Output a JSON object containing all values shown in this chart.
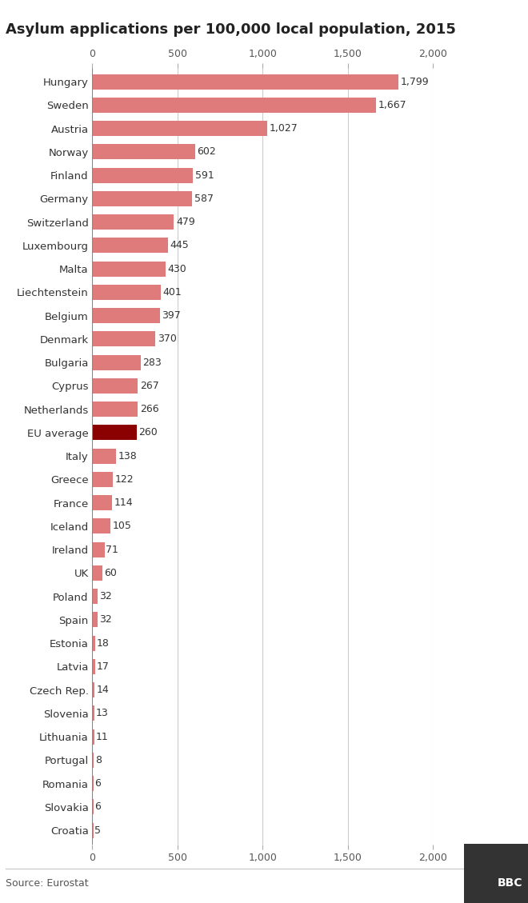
{
  "title": "Asylum applications per 100,000 local population, 2015",
  "source": "Source: Eurostat",
  "categories": [
    "Hungary",
    "Sweden",
    "Austria",
    "Norway",
    "Finland",
    "Germany",
    "Switzerland",
    "Luxembourg",
    "Malta",
    "Liechtenstein",
    "Belgium",
    "Denmark",
    "Bulgaria",
    "Cyprus",
    "Netherlands",
    "EU average",
    "Italy",
    "Greece",
    "France",
    "Iceland",
    "Ireland",
    "UK",
    "Poland",
    "Spain",
    "Estonia",
    "Latvia",
    "Czech Rep.",
    "Slovenia",
    "Lithuania",
    "Portugal",
    "Romania",
    "Slovakia",
    "Croatia"
  ],
  "values": [
    1799,
    1667,
    1027,
    602,
    591,
    587,
    479,
    445,
    430,
    401,
    397,
    370,
    283,
    267,
    266,
    260,
    138,
    122,
    114,
    105,
    71,
    60,
    32,
    32,
    18,
    17,
    14,
    13,
    11,
    8,
    6,
    6,
    5
  ],
  "value_labels": [
    "1,799",
    "1,667",
    "1,027",
    "602",
    "591",
    "587",
    "479",
    "445",
    "430",
    "401",
    "397",
    "370",
    "283",
    "267",
    "266",
    "260",
    "138",
    "122",
    "114",
    "105",
    "71",
    "60",
    "32",
    "32",
    "18",
    "17",
    "14",
    "13",
    "11",
    "8",
    "6",
    "6",
    "5"
  ],
  "bar_color_default": "#e07b7b",
  "bar_color_highlight": "#8b0000",
  "highlight_index": 15,
  "xlim": [
    0,
    2000
  ],
  "xticks": [
    0,
    500,
    1000,
    1500,
    2000
  ],
  "xticklabels": [
    "0",
    "500",
    "1,000",
    "1,500",
    "2,000"
  ],
  "background_color": "#ffffff",
  "title_fontsize": 13,
  "label_fontsize": 9.5,
  "value_fontsize": 9,
  "tick_fontsize": 9,
  "source_fontsize": 9,
  "bar_height": 0.65
}
